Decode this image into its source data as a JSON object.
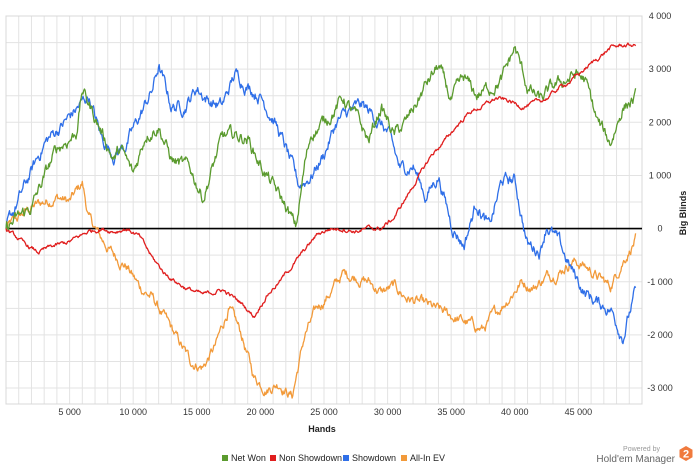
{
  "chart_data": {
    "type": "line",
    "xlabel": "Hands",
    "ylabel": "Big Blinds",
    "xlim": [
      0,
      50000
    ],
    "ylim": [
      -3300,
      4000
    ],
    "xticks": [
      5000,
      10000,
      15000,
      20000,
      25000,
      30000,
      35000,
      40000,
      45000
    ],
    "xtick_labels": [
      "5 000",
      "10 000",
      "15 000",
      "20 000",
      "25 000",
      "30 000",
      "35 000",
      "40 000",
      "45 000"
    ],
    "yticks": [
      4000,
      3000,
      2000,
      1000,
      0,
      -1000,
      -2000,
      -3000
    ],
    "ytick_labels": [
      "4 000",
      "3 000",
      "2 000",
      "1 000",
      "0",
      "-1 000",
      "-2 000",
      "-3 000"
    ],
    "grid": true,
    "legend_position": "bottom",
    "series": [
      {
        "name": "Net Won",
        "color": "#5b9b2f",
        "x": [
          0,
          2000,
          4000,
          5500,
          6000,
          7000,
          8500,
          9000,
          10000,
          11000,
          12000,
          13000,
          14500,
          15500,
          17000,
          18000,
          19000,
          20000,
          21000,
          22000,
          22800,
          23500,
          24000,
          25000,
          26500,
          27500,
          28500,
          29500,
          30500,
          31500,
          33000,
          34000,
          35000,
          36000,
          37000,
          38000,
          39000,
          40000,
          41000,
          42000,
          43000,
          44000,
          44800,
          45500,
          46500,
          47500,
          48500,
          49500
        ],
        "y": [
          0,
          400,
          1500,
          1800,
          2600,
          2100,
          1300,
          1500,
          1000,
          1800,
          1950,
          1300,
          1100,
          600,
          1700,
          1750,
          1700,
          1200,
          800,
          400,
          0,
          1200,
          1800,
          2000,
          2450,
          2100,
          1650,
          2300,
          1750,
          2000,
          2700,
          3050,
          2400,
          2800,
          2500,
          2650,
          2800,
          3400,
          2650,
          2400,
          2650,
          2800,
          2900,
          2800,
          2000,
          1600,
          2300,
          2450
        ]
      },
      {
        "name": "Non Showdown",
        "color": "#e01e1e",
        "x": [
          0,
          1500,
          2500,
          3500,
          5000,
          6500,
          7500,
          8500,
          9500,
          10500,
          11500,
          12500,
          14000,
          15500,
          17000,
          18500,
          19500,
          20500,
          21500,
          22500,
          23500,
          24500,
          25500,
          26500,
          27500,
          28500,
          29500,
          30500,
          31500,
          32500,
          33500,
          34500,
          35500,
          36500,
          37500,
          38500,
          39500,
          40500,
          41500,
          42500,
          43500,
          44500,
          45500,
          46500,
          47500,
          48500,
          49500
        ],
        "y": [
          0,
          -300,
          -450,
          -350,
          -250,
          -50,
          0,
          -50,
          0,
          -150,
          -550,
          -850,
          -1100,
          -1250,
          -1150,
          -1400,
          -1650,
          -1250,
          -1000,
          -700,
          -400,
          -100,
          0,
          0,
          -50,
          0,
          0,
          200,
          600,
          1000,
          1400,
          1650,
          1950,
          2200,
          2300,
          2450,
          2400,
          2300,
          2350,
          2450,
          2650,
          2800,
          3000,
          3200,
          3400,
          3450,
          3450
        ]
      },
      {
        "name": "Showdown",
        "color": "#2f6fe8",
        "x": [
          0,
          1500,
          3000,
          5000,
          6500,
          7500,
          8500,
          9500,
          10500,
          11500,
          12000,
          13000,
          14000,
          15000,
          16000,
          17000,
          18000,
          19000,
          20000,
          21000,
          22000,
          23000,
          24000,
          25000,
          26000,
          27000,
          28000,
          29000,
          30000,
          31000,
          32000,
          33000,
          34000,
          35000,
          36000,
          37000,
          38000,
          39000,
          40000,
          41000,
          42000,
          42500,
          43500,
          44500,
          45500,
          46500,
          47500,
          48500,
          49500
        ],
        "y": [
          0,
          800,
          1600,
          2100,
          2500,
          1700,
          1400,
          1600,
          2100,
          2600,
          3050,
          2300,
          2300,
          2650,
          2400,
          2300,
          2900,
          2700,
          2500,
          2100,
          1500,
          800,
          1000,
          1400,
          2000,
          2200,
          2300,
          2100,
          1800,
          1100,
          1200,
          600,
          1000,
          100,
          -300,
          500,
          0,
          900,
          900,
          -300,
          -400,
          100,
          -300,
          -800,
          -1200,
          -1400,
          -1500,
          -2000,
          -1200
        ]
      },
      {
        "name": "All-In EV",
        "color": "#f29a3a",
        "x": [
          0,
          1000,
          2000,
          3000,
          4000,
          5000,
          6000,
          6500,
          7500,
          8500,
          9500,
          10500,
          11500,
          12500,
          13500,
          14500,
          15500,
          16500,
          17500,
          18500,
          19500,
          20500,
          21500,
          22500,
          23500,
          24500,
          25500,
          26500,
          27500,
          28500,
          29500,
          30500,
          31500,
          32500,
          33500,
          34500,
          35500,
          36500,
          37500,
          38500,
          39500,
          40500,
          41500,
          42500,
          43500,
          44500,
          45500,
          46500,
          47500,
          48500,
          49500
        ],
        "y": [
          0,
          200,
          400,
          500,
          600,
          500,
          850,
          200,
          -200,
          -500,
          -700,
          -1100,
          -1300,
          -1700,
          -2100,
          -2500,
          -2600,
          -2200,
          -1500,
          -2000,
          -2800,
          -3000,
          -2900,
          -3150,
          -2000,
          -1500,
          -1200,
          -850,
          -900,
          -1000,
          -1200,
          -1100,
          -1300,
          -1400,
          -1500,
          -1600,
          -1700,
          -1800,
          -1900,
          -1600,
          -1300,
          -1000,
          -1100,
          -900,
          -800,
          -600,
          -700,
          -900,
          -1100,
          -600,
          -200
        ]
      }
    ]
  },
  "zero_line_color": "#000000",
  "brand": {
    "powered_by": "Powered by",
    "name": "Hold'em Manager",
    "badge": "2",
    "badge_color": "#f07a3d"
  }
}
